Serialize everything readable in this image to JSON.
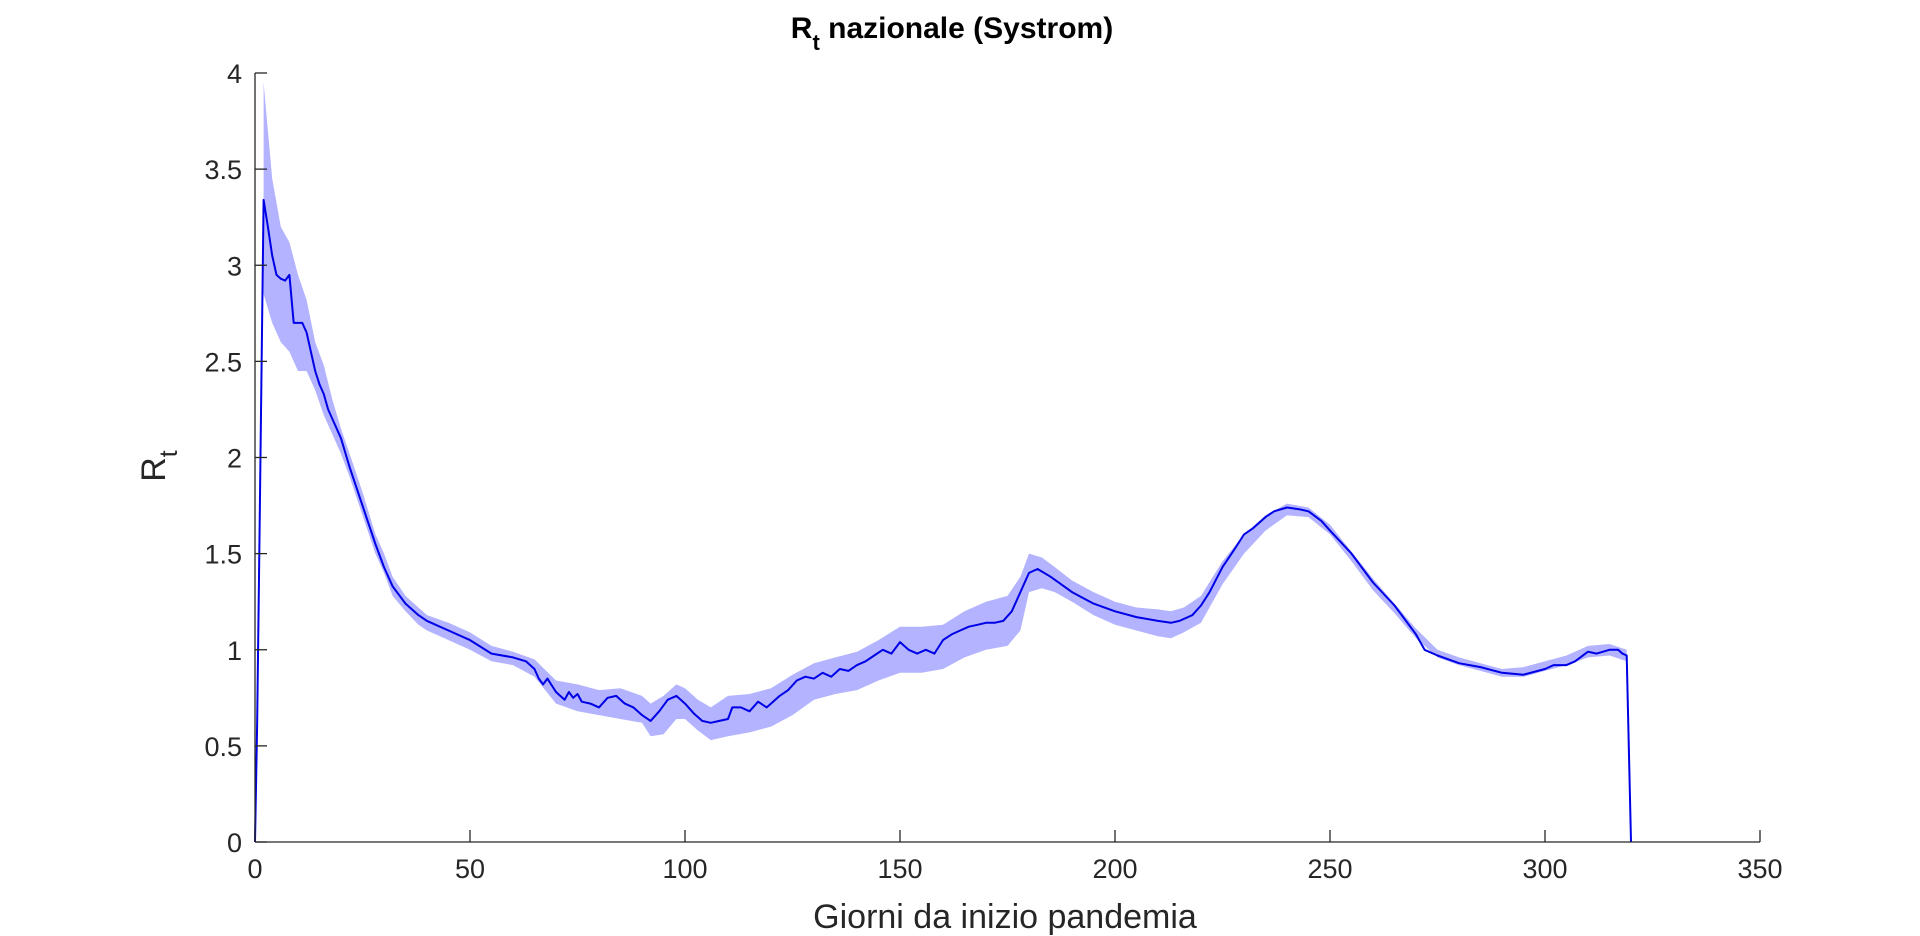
{
  "chart_data": {
    "type": "line",
    "title": "R",
    "title_subscript": "t",
    "title_suffix": " nazionale (Systrom)",
    "xlabel": "Giorni da inizio pandemia",
    "ylabel": "R",
    "ylabel_subscript": "t",
    "xlim": [
      0,
      350
    ],
    "ylim": [
      0,
      4
    ],
    "xticks": [
      0,
      50,
      100,
      150,
      200,
      250,
      300,
      350
    ],
    "xtick_labels": [
      "0",
      "50",
      "100",
      "150",
      "200",
      "250",
      "300",
      "350"
    ],
    "yticks": [
      0,
      0.5,
      1,
      1.5,
      2,
      2.5,
      3,
      3.5,
      4
    ],
    "ytick_labels": [
      "0",
      "0.5",
      "1",
      "1.5",
      "2",
      "2.5",
      "3",
      "3.5",
      "4"
    ],
    "grid": false,
    "colors": {
      "line": "#0000e6",
      "band": "#b3b3ff",
      "axis": "#262626"
    },
    "series": [
      {
        "type": "line",
        "x": [
          0,
          0.5,
          1,
          2,
          3,
          4,
          5,
          6,
          7,
          8,
          9,
          10,
          11,
          12,
          13,
          14,
          15,
          16,
          17,
          18,
          20,
          22,
          25,
          28,
          30,
          32,
          35,
          38,
          40,
          45,
          50,
          55,
          60,
          63,
          65,
          66,
          67,
          68,
          70,
          72,
          73,
          74,
          75,
          76,
          78,
          80,
          82,
          84,
          86,
          88,
          90,
          92,
          94,
          96,
          98,
          100,
          102,
          104,
          106,
          108,
          110,
          111,
          113,
          115,
          117,
          119,
          120,
          122,
          124,
          126,
          128,
          130,
          132,
          134,
          136,
          138,
          140,
          142,
          144,
          146,
          148,
          150,
          152,
          154,
          156,
          158,
          160,
          162,
          164,
          166,
          168,
          170,
          172,
          174,
          176,
          178,
          180,
          182,
          185,
          190,
          195,
          200,
          205,
          210,
          213,
          215,
          218,
          220,
          222,
          225,
          228,
          230,
          232,
          235,
          237,
          240,
          243,
          245,
          248,
          250,
          255,
          260,
          265,
          270,
          272,
          275,
          280,
          285,
          290,
          295,
          300,
          302,
          305,
          307,
          310,
          312,
          315,
          317,
          318,
          319,
          320
        ],
        "y": [
          0,
          0.6,
          1.5,
          3.34,
          3.2,
          3.05,
          2.95,
          2.93,
          2.92,
          2.95,
          2.7,
          2.7,
          2.7,
          2.65,
          2.55,
          2.45,
          2.38,
          2.33,
          2.25,
          2.2,
          2.1,
          1.95,
          1.75,
          1.55,
          1.43,
          1.33,
          1.24,
          1.18,
          1.15,
          1.1,
          1.05,
          0.98,
          0.96,
          0.94,
          0.9,
          0.85,
          0.82,
          0.85,
          0.78,
          0.74,
          0.78,
          0.75,
          0.77,
          0.73,
          0.72,
          0.7,
          0.75,
          0.76,
          0.72,
          0.7,
          0.66,
          0.63,
          0.68,
          0.74,
          0.76,
          0.72,
          0.67,
          0.63,
          0.62,
          0.63,
          0.64,
          0.7,
          0.7,
          0.68,
          0.73,
          0.7,
          0.72,
          0.76,
          0.79,
          0.84,
          0.86,
          0.85,
          0.88,
          0.86,
          0.9,
          0.89,
          0.92,
          0.94,
          0.97,
          1.0,
          0.98,
          1.04,
          1.0,
          0.98,
          1.0,
          0.98,
          1.05,
          1.08,
          1.1,
          1.12,
          1.13,
          1.14,
          1.14,
          1.15,
          1.2,
          1.3,
          1.4,
          1.42,
          1.38,
          1.3,
          1.24,
          1.2,
          1.17,
          1.15,
          1.14,
          1.15,
          1.18,
          1.23,
          1.3,
          1.43,
          1.53,
          1.6,
          1.63,
          1.69,
          1.72,
          1.74,
          1.73,
          1.72,
          1.67,
          1.62,
          1.5,
          1.35,
          1.23,
          1.08,
          1.0,
          0.97,
          0.93,
          0.91,
          0.88,
          0.87,
          0.9,
          0.92,
          0.92,
          0.94,
          0.99,
          0.98,
          1.0,
          1.0,
          0.98,
          0.97,
          0.0
        ]
      },
      {
        "type": "band",
        "x": [
          2,
          4,
          6,
          8,
          10,
          12,
          14,
          16,
          18,
          20,
          22,
          25,
          28,
          30,
          32,
          35,
          38,
          40,
          45,
          50,
          55,
          60,
          65,
          70,
          75,
          80,
          85,
          90,
          92,
          95,
          98,
          100,
          103,
          106,
          110,
          115,
          120,
          125,
          130,
          135,
          140,
          145,
          150,
          155,
          160,
          165,
          170,
          175,
          178,
          180,
          183,
          186,
          190,
          195,
          200,
          205,
          210,
          213,
          216,
          220,
          225,
          230,
          235,
          240,
          245,
          250,
          255,
          260,
          265,
          270,
          275,
          280,
          285,
          290,
          295,
          300,
          305,
          310,
          315,
          319
        ],
        "upper": [
          3.95,
          3.45,
          3.2,
          3.12,
          2.95,
          2.82,
          2.6,
          2.48,
          2.3,
          2.15,
          2.02,
          1.82,
          1.6,
          1.5,
          1.38,
          1.28,
          1.22,
          1.18,
          1.14,
          1.09,
          1.02,
          0.99,
          0.95,
          0.84,
          0.82,
          0.79,
          0.8,
          0.76,
          0.72,
          0.76,
          0.82,
          0.8,
          0.74,
          0.7,
          0.76,
          0.77,
          0.8,
          0.87,
          0.93,
          0.96,
          0.99,
          1.05,
          1.12,
          1.12,
          1.13,
          1.2,
          1.25,
          1.28,
          1.38,
          1.5,
          1.48,
          1.43,
          1.36,
          1.3,
          1.25,
          1.22,
          1.21,
          1.2,
          1.22,
          1.28,
          1.46,
          1.6,
          1.7,
          1.76,
          1.74,
          1.65,
          1.51,
          1.37,
          1.24,
          1.11,
          1.0,
          0.96,
          0.93,
          0.9,
          0.91,
          0.94,
          0.97,
          1.02,
          1.03,
          1.0
        ],
        "lower": [
          2.85,
          2.7,
          2.6,
          2.55,
          2.45,
          2.45,
          2.35,
          2.22,
          2.12,
          2.02,
          1.9,
          1.7,
          1.5,
          1.4,
          1.28,
          1.2,
          1.13,
          1.1,
          1.05,
          1.0,
          0.94,
          0.92,
          0.86,
          0.72,
          0.68,
          0.66,
          0.64,
          0.62,
          0.55,
          0.56,
          0.64,
          0.64,
          0.58,
          0.53,
          0.55,
          0.57,
          0.6,
          0.66,
          0.74,
          0.77,
          0.79,
          0.84,
          0.88,
          0.88,
          0.9,
          0.96,
          1.0,
          1.02,
          1.1,
          1.3,
          1.32,
          1.3,
          1.25,
          1.18,
          1.13,
          1.1,
          1.07,
          1.06,
          1.09,
          1.14,
          1.34,
          1.5,
          1.62,
          1.7,
          1.69,
          1.6,
          1.46,
          1.31,
          1.19,
          1.06,
          0.96,
          0.92,
          0.89,
          0.86,
          0.86,
          0.89,
          0.92,
          0.96,
          0.97,
          0.94
        ]
      }
    ]
  }
}
